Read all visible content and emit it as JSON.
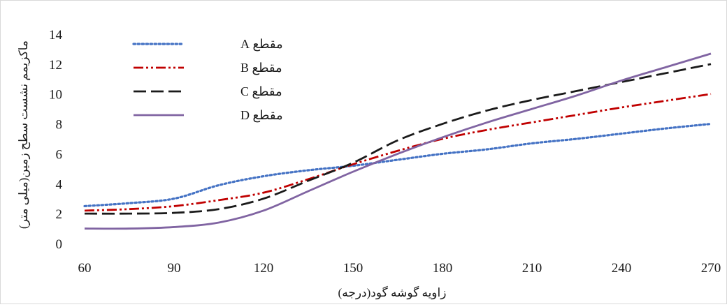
{
  "chart_data": {
    "type": "line",
    "title": "",
    "xlabel": "زاویه گوشه گود(درجه)",
    "ylabel": "ماکزیمم نشست سطح زمین(میلی متر)",
    "xlim": [
      60,
      270
    ],
    "ylim": [
      0,
      14
    ],
    "xticks": [
      60,
      90,
      120,
      150,
      180,
      210,
      240,
      270
    ],
    "yticks": [
      0,
      2,
      4,
      6,
      8,
      10,
      12,
      14
    ],
    "grid": false,
    "legend_position": "top-left",
    "x": [
      60,
      75,
      90,
      105,
      120,
      135,
      150,
      165,
      180,
      195,
      210,
      225,
      240,
      255,
      270
    ],
    "series": [
      {
        "name": "مقطع A",
        "color": "#4472c4",
        "dash": "dotted",
        "values": [
          2.5,
          2.7,
          3.0,
          3.9,
          4.5,
          4.9,
          5.2,
          5.6,
          6.0,
          6.3,
          6.7,
          7.0,
          7.35,
          7.7,
          8.0
        ]
      },
      {
        "name": "مقطع B",
        "color": "#c00000",
        "dash": "dash-dot-dot",
        "values": [
          2.2,
          2.3,
          2.5,
          2.9,
          3.4,
          4.3,
          5.3,
          6.2,
          7.0,
          7.6,
          8.1,
          8.6,
          9.1,
          9.55,
          10.0
        ]
      },
      {
        "name": "مقطع C",
        "color": "#1a1a1a",
        "dash": "long-dash",
        "values": [
          2.0,
          2.0,
          2.05,
          2.3,
          3.0,
          4.2,
          5.4,
          6.9,
          8.0,
          8.9,
          9.6,
          10.2,
          10.8,
          11.4,
          12.0
        ]
      },
      {
        "name": "مقطع D",
        "color": "#8064a2",
        "dash": "solid",
        "values": [
          1.0,
          1.0,
          1.1,
          1.4,
          2.2,
          3.5,
          4.8,
          6.0,
          7.1,
          8.1,
          9.0,
          9.9,
          10.9,
          11.8,
          12.7
        ]
      }
    ]
  }
}
